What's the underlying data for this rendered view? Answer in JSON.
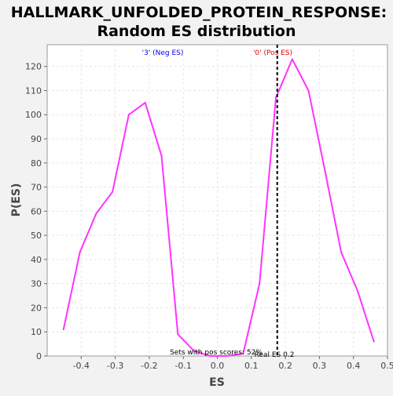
{
  "chart_data": {
    "type": "line",
    "title": "HALLMARK_UNFOLDED_PROTEIN_RESPONSE:",
    "subtitle": "Random ES distribution",
    "xlabel": "ES",
    "ylabel": "P(ES)",
    "xlim": [
      -0.5,
      0.5
    ],
    "ylim": [
      0,
      129
    ],
    "grid": true,
    "x_ticks": [
      {
        "v": -0.4,
        "label": "-0.4"
      },
      {
        "v": -0.3,
        "label": "-0.3"
      },
      {
        "v": -0.2,
        "label": "-0.2"
      },
      {
        "v": -0.1,
        "label": "-0.1"
      },
      {
        "v": 0.0,
        "label": "0.0"
      },
      {
        "v": 0.1,
        "label": "0.1"
      },
      {
        "v": 0.2,
        "label": "0.2"
      },
      {
        "v": 0.3,
        "label": "0.3"
      },
      {
        "v": 0.4,
        "label": "0.4"
      },
      {
        "v": 0.5,
        "label": "0.5"
      }
    ],
    "y_ticks": [
      0,
      10,
      20,
      30,
      40,
      50,
      60,
      70,
      80,
      90,
      100,
      110,
      120
    ],
    "series": [
      {
        "color": "#ff33ff",
        "x": [
          -0.452,
          -0.404,
          -0.356,
          -0.308,
          -0.26,
          -0.212,
          -0.164,
          -0.116,
          -0.068,
          -0.02,
          0.028,
          0.076,
          0.124,
          0.172,
          0.22,
          0.268,
          0.316,
          0.364,
          0.412,
          0.46
        ],
        "y": [
          11,
          43,
          59,
          68,
          100,
          105,
          83,
          9,
          2,
          0,
          0,
          1,
          30,
          107,
          123,
          110,
          77,
          43,
          27,
          6
        ]
      }
    ],
    "annotations": {
      "neg_label": {
        "text": "'3' (Neg ES)",
        "color": "#0000ee"
      },
      "pos_label": {
        "text": "'0' (Pos ES)",
        "color": "#ee0000"
      },
      "real_es": {
        "x": 0.176,
        "text": "Real ES 0.2"
      },
      "footer": "Sets with pos scores: 52%"
    }
  }
}
